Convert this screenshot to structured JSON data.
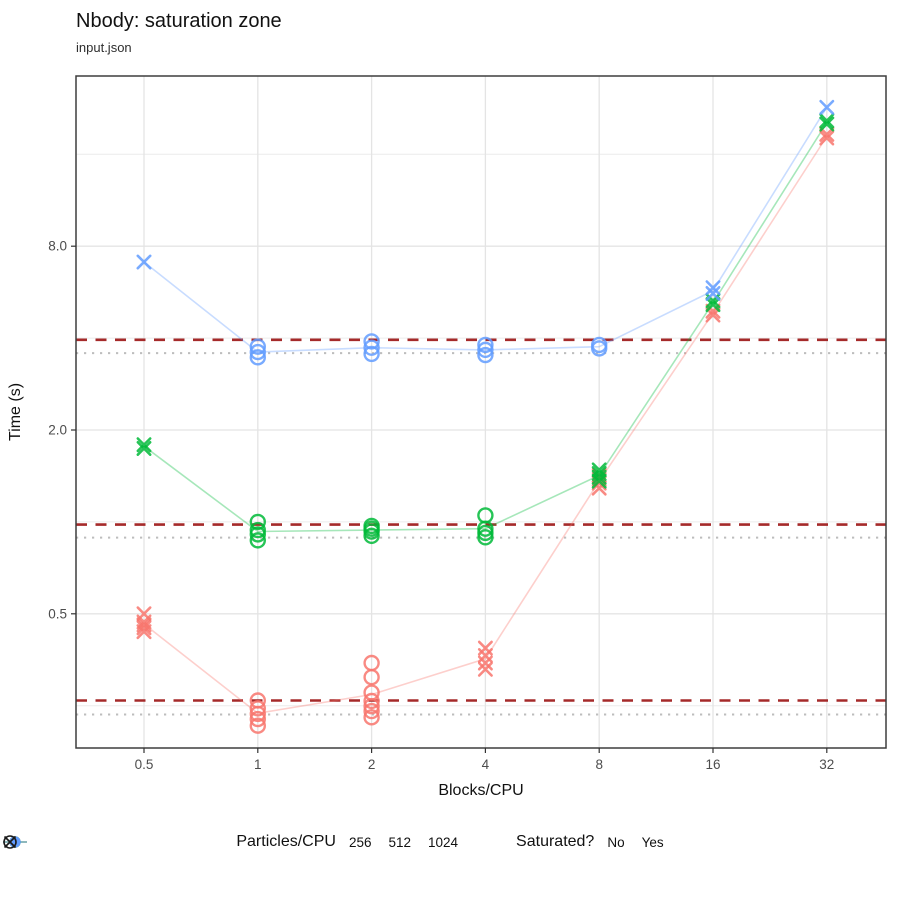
{
  "header": {
    "title": "Nbody: saturation zone",
    "subtitle": "input.json"
  },
  "chart_data": {
    "type": "scatter",
    "title": "Nbody: saturation zone",
    "subtitle": "input.json",
    "xlabel": "Blocks/CPU",
    "ylabel": "Time (s)",
    "x_scale": "log2",
    "y_scale": "log2",
    "x_ticks": {
      "values": [
        0.5,
        1,
        2,
        4,
        8,
        16,
        32
      ],
      "labels": [
        "0.5",
        "1",
        "2",
        "4",
        "8",
        "16",
        "32"
      ]
    },
    "y_ticks": {
      "values": [
        0.5,
        2,
        8
      ],
      "labels": [
        "0.5",
        "2.0",
        "8.0"
      ]
    },
    "y_minor_ticks": [
      0.25,
      1,
      4,
      16
    ],
    "x_range": [
      0.33,
      45.9
    ],
    "y_range": [
      0.182,
      28.9
    ],
    "grid": true,
    "legend_position": "bottom",
    "legend": {
      "color": {
        "title": "Particles/CPU",
        "items": [
          {
            "label": "256",
            "color": "#F8766D"
          },
          {
            "label": "512",
            "color": "#00BA38"
          },
          {
            "label": "1024",
            "color": "#619CFF"
          }
        ]
      },
      "shape": {
        "title": "Saturated?",
        "items": [
          {
            "label": "No",
            "shape": "x"
          },
          {
            "label": "Yes",
            "shape": "circle"
          }
        ]
      }
    },
    "reference_lines": [
      {
        "series": "256",
        "dashed_threshold": 0.26,
        "dotted_mean": 0.234
      },
      {
        "series": "512",
        "dashed_threshold": 0.98,
        "dotted_mean": 0.888
      },
      {
        "series": "1024",
        "dashed_threshold": 3.95,
        "dotted_mean": 3.57
      }
    ],
    "ref_styles": {
      "dashed_color": "#A52A2A",
      "dotted_color": "#BDBDBD"
    },
    "series": [
      {
        "name": "256",
        "color": "#F8766D",
        "line_x": [
          0.5,
          1,
          2,
          4,
          8,
          16,
          32
        ],
        "line_y": [
          0.463,
          0.236,
          0.272,
          0.356,
          1.36,
          4.83,
          18.3
        ],
        "points": [
          [
            0.5,
            0.5,
            "No"
          ],
          [
            0.5,
            0.47,
            "No"
          ],
          [
            0.5,
            0.46,
            "No"
          ],
          [
            0.5,
            0.45,
            "No"
          ],
          [
            0.5,
            0.437,
            "No"
          ],
          [
            1,
            0.26,
            "Yes"
          ],
          [
            1,
            0.245,
            "Yes"
          ],
          [
            1,
            0.235,
            "Yes"
          ],
          [
            1,
            0.226,
            "Yes"
          ],
          [
            1,
            0.215,
            "Yes"
          ],
          [
            2,
            0.345,
            "Yes"
          ],
          [
            2,
            0.31,
            "Yes"
          ],
          [
            2,
            0.276,
            "Yes"
          ],
          [
            2,
            0.259,
            "Yes"
          ],
          [
            2,
            0.249,
            "Yes"
          ],
          [
            2,
            0.24,
            "Yes"
          ],
          [
            2,
            0.229,
            "Yes"
          ],
          [
            4,
            0.386,
            "No"
          ],
          [
            4,
            0.365,
            "No"
          ],
          [
            4,
            0.345,
            "No"
          ],
          [
            4,
            0.329,
            "No"
          ],
          [
            8,
            1.42,
            "No"
          ],
          [
            8,
            1.38,
            "No"
          ],
          [
            8,
            1.34,
            "No"
          ],
          [
            8,
            1.29,
            "No"
          ],
          [
            16,
            4.9,
            "No"
          ],
          [
            16,
            4.76,
            "No"
          ],
          [
            32,
            18.6,
            "No"
          ],
          [
            32,
            18.1,
            "No"
          ]
        ]
      },
      {
        "name": "512",
        "color": "#00BA38",
        "line_x": [
          0.5,
          1,
          2,
          4,
          8,
          16,
          32
        ],
        "line_y": [
          1.77,
          0.93,
          0.94,
          0.95,
          1.42,
          5.22,
          20.3
        ],
        "points": [
          [
            0.5,
            1.79,
            "No"
          ],
          [
            0.5,
            1.74,
            "No"
          ],
          [
            1,
            1.0,
            "Yes"
          ],
          [
            1,
            0.94,
            "Yes"
          ],
          [
            1,
            0.91,
            "Yes"
          ],
          [
            1,
            0.87,
            "Yes"
          ],
          [
            2,
            0.97,
            "Yes"
          ],
          [
            2,
            0.95,
            "Yes"
          ],
          [
            2,
            0.93,
            "Yes"
          ],
          [
            2,
            0.9,
            "Yes"
          ],
          [
            4,
            1.05,
            "Yes"
          ],
          [
            4,
            0.95,
            "Yes"
          ],
          [
            4,
            0.92,
            "Yes"
          ],
          [
            4,
            0.89,
            "Yes"
          ],
          [
            8,
            1.48,
            "No"
          ],
          [
            8,
            1.44,
            "No"
          ],
          [
            8,
            1.4,
            "No"
          ],
          [
            8,
            1.36,
            "No"
          ],
          [
            16,
            5.3,
            "No"
          ],
          [
            16,
            5.15,
            "No"
          ],
          [
            32,
            20.6,
            "No"
          ],
          [
            32,
            20.1,
            "No"
          ]
        ]
      },
      {
        "name": "1024",
        "color": "#619CFF",
        "line_x": [
          0.5,
          1,
          2,
          4,
          8,
          16,
          32
        ],
        "line_y": [
          7.1,
          3.6,
          3.72,
          3.66,
          3.75,
          5.72,
          22.8
        ],
        "points": [
          [
            0.5,
            7.1,
            "No"
          ],
          [
            1,
            3.75,
            "Yes"
          ],
          [
            1,
            3.6,
            "Yes"
          ],
          [
            1,
            3.46,
            "Yes"
          ],
          [
            2,
            3.9,
            "Yes"
          ],
          [
            2,
            3.72,
            "Yes"
          ],
          [
            2,
            3.55,
            "Yes"
          ],
          [
            4,
            3.8,
            "Yes"
          ],
          [
            4,
            3.66,
            "Yes"
          ],
          [
            4,
            3.52,
            "Yes"
          ],
          [
            8,
            3.8,
            "Yes"
          ],
          [
            8,
            3.7,
            "Yes"
          ],
          [
            16,
            5.85,
            "No"
          ],
          [
            16,
            5.6,
            "No"
          ],
          [
            32,
            22.8,
            "No"
          ]
        ]
      }
    ]
  }
}
